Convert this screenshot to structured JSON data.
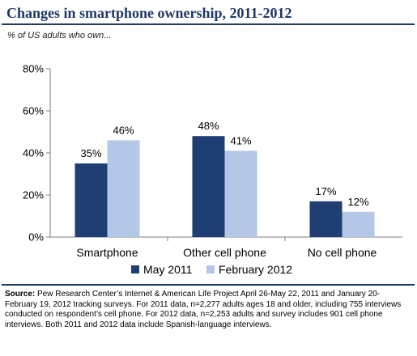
{
  "page": {
    "title": "Changes in smartphone ownership, 2011-2012",
    "subtitle": "% of US adults who own...",
    "source_label": "Source:",
    "source_text": " Pew Research Center’s Internet & American Life Project April 26-May 22, 2011 and January 20-February 19, 2012 tracking surveys. For 2011 data, n=2,277 adults ages 18 and older, including 755 interviews conducted on respondent’s cell phone. For 2012 data, n=2,253 adults and survey includes 901 cell phone interviews. Both 2011 and 2012 data include Spanish-language interviews."
  },
  "chart_data": {
    "type": "bar",
    "title": "Changes in smartphone ownership, 2011-2012",
    "subtitle": "% of US adults who own...",
    "categories": [
      "Smartphone",
      "Other cell phone",
      "No cell phone"
    ],
    "series": [
      {
        "name": "May 2011",
        "values": [
          35,
          48,
          17
        ],
        "labels": [
          "35%",
          "48%",
          "17%"
        ],
        "color": "#1f3f74"
      },
      {
        "name": "February 2012",
        "values": [
          46,
          41,
          12
        ],
        "labels": [
          "46%",
          "41%",
          "12%"
        ],
        "color": "#b4c7e7"
      }
    ],
    "ylim": [
      0,
      80
    ],
    "yticks": [
      0,
      20,
      40,
      60,
      80
    ],
    "ytick_labels": [
      "0%",
      "20%",
      "40%",
      "60%",
      "80%"
    ],
    "grid": false,
    "legend": "bottom"
  }
}
